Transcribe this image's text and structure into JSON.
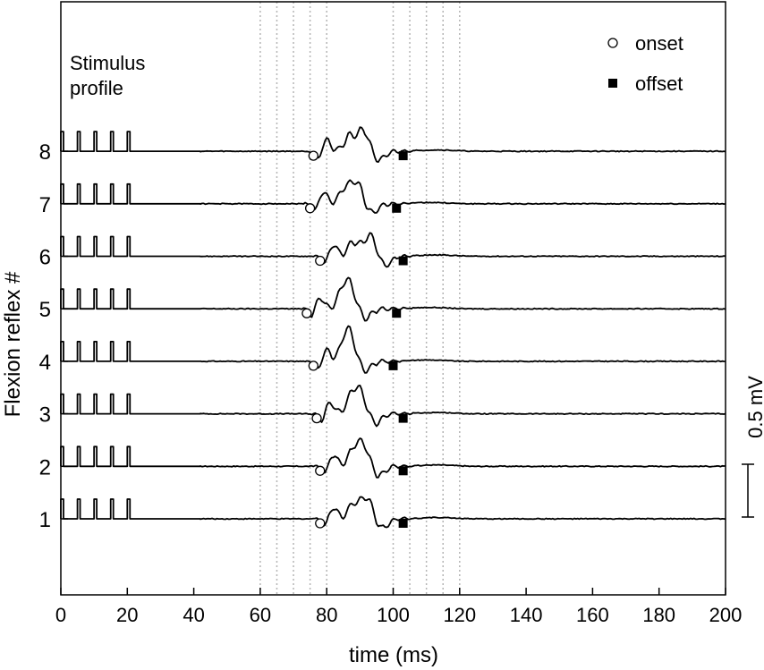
{
  "chart_data": {
    "type": "line",
    "xlabel": "time (ms)",
    "ylabel": "Flexion reflex #",
    "xlim": [
      0,
      200
    ],
    "ylim": [
      -0.5,
      9
    ],
    "xticks": [
      0,
      20,
      40,
      60,
      80,
      100,
      120,
      140,
      160,
      180,
      200
    ],
    "yticks": [
      1,
      2,
      3,
      4,
      5,
      6,
      7,
      8
    ],
    "grid_lines_x": [
      60,
      65,
      70,
      75,
      80,
      100,
      105,
      110,
      115,
      120
    ],
    "stimulus_label": "Stimulus profile",
    "stimulus_pulse_times": [
      0,
      5,
      10,
      15,
      20
    ],
    "legend": {
      "position": "top-right",
      "onset": "onset",
      "offset": "offset"
    },
    "scale_bar": {
      "label": "0.5 mV",
      "value_mV": 0.5
    },
    "series": [
      {
        "trial": 1,
        "onset_ms": 78,
        "offset_ms": 103,
        "peak_ms": 92
      },
      {
        "trial": 2,
        "onset_ms": 78,
        "offset_ms": 103,
        "peak_ms": 91
      },
      {
        "trial": 3,
        "onset_ms": 77,
        "offset_ms": 103,
        "peak_ms": 90
      },
      {
        "trial": 4,
        "onset_ms": 76,
        "offset_ms": 100,
        "peak_ms": 87
      },
      {
        "trial": 5,
        "onset_ms": 74,
        "offset_ms": 101,
        "peak_ms": 87
      },
      {
        "trial": 6,
        "onset_ms": 78,
        "offset_ms": 103,
        "peak_ms": 93
      },
      {
        "trial": 7,
        "onset_ms": 75,
        "offset_ms": 101,
        "peak_ms": 89
      },
      {
        "trial": 8,
        "onset_ms": 76,
        "offset_ms": 103,
        "peak_ms": 91
      }
    ]
  }
}
